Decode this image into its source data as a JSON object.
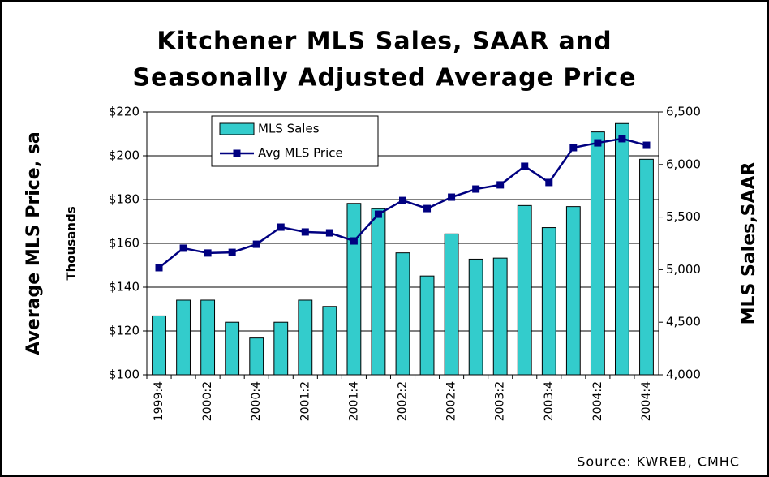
{
  "chart_data": {
    "type": "combo",
    "title": [
      "Kitchener MLS Sales, SAAR and",
      "Seasonally Adjusted Average Price"
    ],
    "y_label": "Average MLS Price, sa",
    "y_unit_label": "Thousands",
    "y2_label": "MLS Sales,SAAR",
    "source": "Source: KWREB, CMHC",
    "categories": [
      "1999:4",
      null,
      "2000:2",
      null,
      "2000:4",
      null,
      "2001:2",
      null,
      "2001:4",
      null,
      "2002:2",
      null,
      "2002:4",
      null,
      "2003:2",
      null,
      "2003:4",
      null,
      "2004:2",
      null,
      "2004:4"
    ],
    "series": [
      {
        "name": "MLS Sales",
        "type": "bar",
        "axis": "y2",
        "color": "#33cccc",
        "values": [
          4560,
          4710,
          4710,
          4500,
          4350,
          4500,
          4710,
          4650,
          5630,
          5580,
          5160,
          4940,
          5340,
          5100,
          5110,
          5610,
          5400,
          5600,
          6310,
          6390,
          6050
        ]
      },
      {
        "name": "Avg MLS Price",
        "type": "line",
        "color": "#000080",
        "values": [
          148.9,
          157.8,
          155.6,
          155.9,
          159.6,
          167.4,
          165.2,
          164.8,
          161.1,
          173.3,
          179.6,
          175.9,
          181.1,
          184.8,
          186.7,
          195.2,
          187.8,
          203.7,
          205.9,
          207.8,
          204.8
        ]
      }
    ],
    "ylim": [
      100,
      220
    ],
    "yticks": [
      {
        "value": 100,
        "label": "$100"
      },
      {
        "value": 120,
        "label": "$120"
      },
      {
        "value": 140,
        "label": "$140"
      },
      {
        "value": 160,
        "label": "$160"
      },
      {
        "value": 180,
        "label": "$180"
      },
      {
        "value": 200,
        "label": "$200"
      },
      {
        "value": 220,
        "label": "$220"
      }
    ],
    "y2lim": [
      4000,
      6500
    ],
    "y2ticks": [
      {
        "value": 4000,
        "label": "4,000"
      },
      {
        "value": 4500,
        "label": "4,500"
      },
      {
        "value": 5000,
        "label": "5,000"
      },
      {
        "value": 5500,
        "label": "5,500"
      },
      {
        "value": 6000,
        "label": "6,000"
      },
      {
        "value": 6500,
        "label": "6,500"
      }
    ],
    "grid": true,
    "legend": "top-left"
  }
}
